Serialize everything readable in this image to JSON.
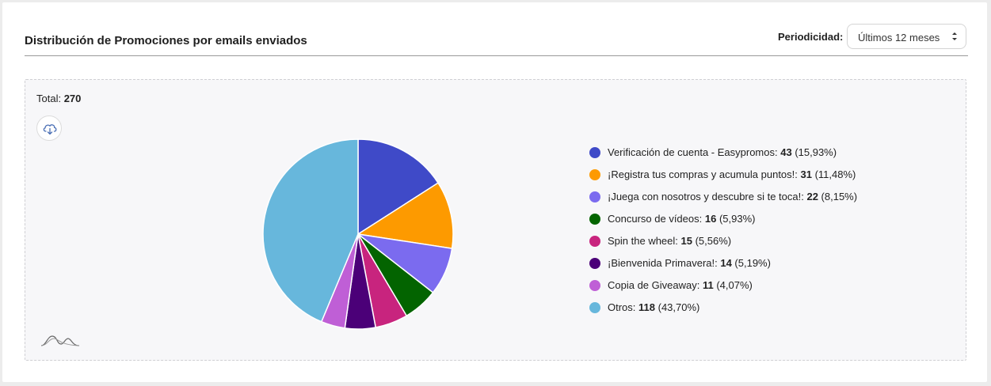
{
  "header": {
    "title": "Distribución de Promociones por emails enviados",
    "period_label": "Periodicidad:",
    "period_value": "Últimos 12 meses"
  },
  "panel": {
    "total_label": "Total:",
    "total_value": "270",
    "download_icon": "cloud-download-icon",
    "decor_icon": "waves-icon"
  },
  "chart_data": {
    "type": "pie",
    "title": "Distribución de Promociones por emails enviados",
    "total": 270,
    "slices": [
      {
        "label": "Verificación de cuenta - Easypromos:",
        "value": 43,
        "pct": "(15,93%)",
        "color": "#3f4ac8"
      },
      {
        "label": "¡Registra tus compras y acumula puntos!:",
        "value": 31,
        "pct": "(11,48%)",
        "color": "#fd9a00"
      },
      {
        "label": "¡Juega con nosotros y descubre si te toca!:",
        "value": 22,
        "pct": "(8,15%)",
        "color": "#7b6bef"
      },
      {
        "label": "Concurso de vídeos:",
        "value": 16,
        "pct": "(5,93%)",
        "color": "#036400"
      },
      {
        "label": "Spin the wheel:",
        "value": 15,
        "pct": "(5,56%)",
        "color": "#c8247e"
      },
      {
        "label": "¡Bienvenida Primavera!:",
        "value": 14,
        "pct": "(5,19%)",
        "color": "#4b0078"
      },
      {
        "label": "Copia de Giveaway:",
        "value": 11,
        "pct": "(4,07%)",
        "color": "#bf5fd6"
      },
      {
        "label": "Otros:",
        "value": 118,
        "pct": "(43,70%)",
        "color": "#67b7dc"
      }
    ],
    "legend_position": "right"
  }
}
